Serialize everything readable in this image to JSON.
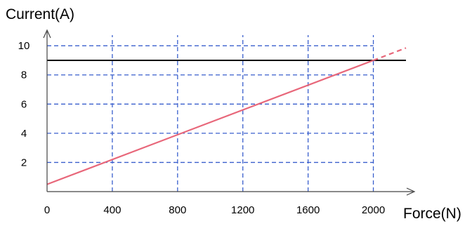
{
  "chart_data": {
    "type": "line",
    "xlabel": "Force(N)",
    "ylabel": "Current(A)",
    "xlim": [
      0,
      2200
    ],
    "ylim": [
      0,
      11.5
    ],
    "x_ticks": [
      "0",
      "400",
      "800",
      "1200",
      "1600",
      "2000"
    ],
    "y_ticks": [
      "2",
      "4",
      "6",
      "8",
      "10"
    ],
    "x_tick_values": [
      0,
      400,
      800,
      1200,
      1600,
      2000
    ],
    "y_tick_values": [
      2,
      4,
      6,
      8,
      10
    ],
    "grid": true,
    "series": [
      {
        "x": [
          0,
          2200
        ],
        "y": [
          9,
          9
        ],
        "color": "#000000",
        "style": "solid"
      },
      {
        "x": [
          0,
          2000
        ],
        "y": [
          0.5,
          9
        ],
        "color": "#e8677a",
        "style": "solid"
      },
      {
        "x": [
          2000,
          2200
        ],
        "y": [
          9,
          9.85
        ],
        "color": "#e8677a",
        "style": "dashed"
      }
    ],
    "colors": {
      "grid": "#3a5fcd",
      "axis": "#444444"
    }
  }
}
